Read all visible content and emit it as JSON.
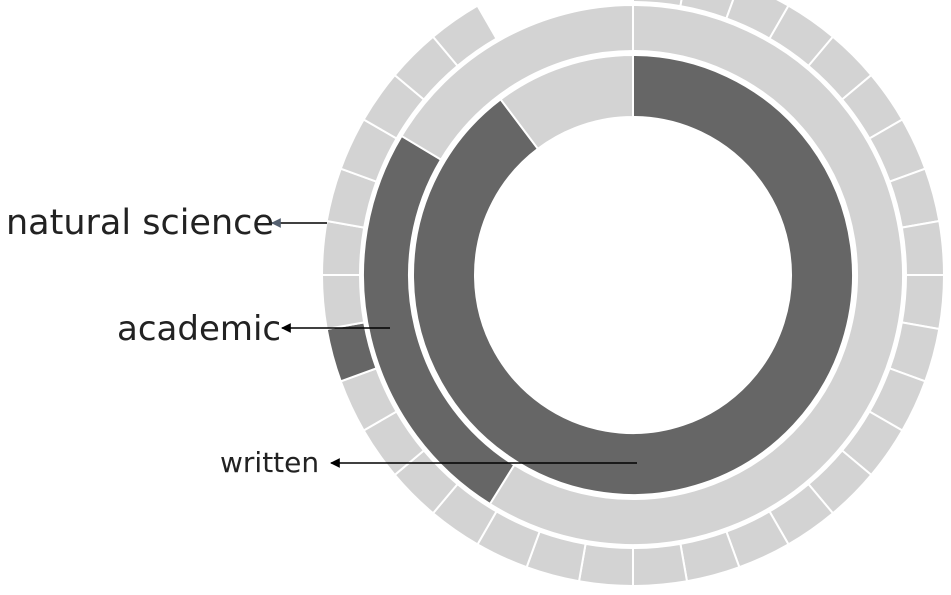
{
  "diagram": {
    "type": "sunburst",
    "colors": {
      "highlight": "#666666",
      "base": "#d3d3d3",
      "separator": "#ffffff",
      "text": "#222222",
      "arrow": "#000000",
      "arrow_top": "#556070"
    },
    "labels": {
      "top": "natural science",
      "middle": "academic",
      "bottom": "written"
    },
    "rings": [
      {
        "level": 1,
        "highlight_label": "written",
        "segments": [
          {
            "highlighted": true,
            "span_deg": 323
          },
          {
            "highlighted": false,
            "span_deg": 37
          }
        ]
      },
      {
        "level": 2,
        "highlight_label": "academic",
        "segments": [
          {
            "highlighted": false,
            "span_deg": 212
          },
          {
            "highlighted": true,
            "span_deg": 89
          },
          {
            "highlighted": false,
            "span_deg": 59
          }
        ]
      },
      {
        "level": 3,
        "highlight_label": "natural science",
        "segments": [
          {
            "highlighted": false,
            "span_deg": 250
          },
          {
            "highlighted": true,
            "span_deg": 10
          },
          {
            "highlighted": false,
            "span_deg": 70
          }
        ]
      }
    ]
  }
}
